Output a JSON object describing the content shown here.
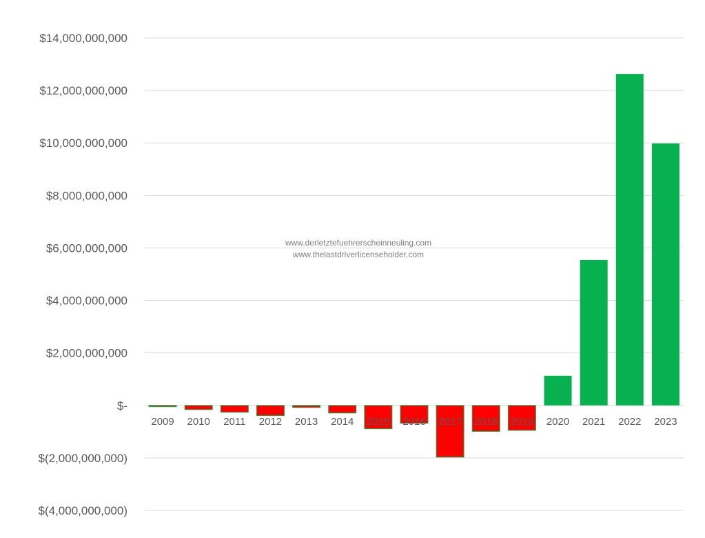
{
  "chart_data": {
    "type": "bar",
    "title": "",
    "xlabel": "",
    "ylabel": "",
    "categories": [
      "2009",
      "2010",
      "2011",
      "2012",
      "2013",
      "2014",
      "2015",
      "2016",
      "2017",
      "2018",
      "2019",
      "2020",
      "2021",
      "2022",
      "2023"
    ],
    "values": [
      -50000000,
      -160000000,
      -260000000,
      -390000000,
      -80000000,
      -290000000,
      -890000000,
      -680000000,
      -1970000000,
      -990000000,
      -950000000,
      1130000000,
      5540000000,
      12630000000,
      9980000000
    ],
    "ylim": [
      -4000000000,
      14000000000
    ],
    "yticks": [
      14000000000,
      12000000000,
      10000000000,
      8000000000,
      6000000000,
      4000000000,
      2000000000,
      0,
      -2000000000,
      -4000000000
    ],
    "ytick_labels": [
      "$14,000,000,000",
      "$12,000,000,000",
      "$10,000,000,000",
      "$8,000,000,000",
      "$6,000,000,000",
      "$4,000,000,000",
      "$2,000,000,000",
      "$-",
      "$(2,000,000,000)",
      "$(4,000,000,000)"
    ],
    "grid": true,
    "legend": "none",
    "colors": {
      "positive": "#07b14f",
      "negative": "#ff0000",
      "negative_border": "#07b14f",
      "grid": "#d9d9d9",
      "text": "#595959"
    }
  },
  "watermark": {
    "line1": "www.derletztefuehrerscheinneuling.com",
    "line2": "www.thelastdriverlicenseholder.com"
  }
}
